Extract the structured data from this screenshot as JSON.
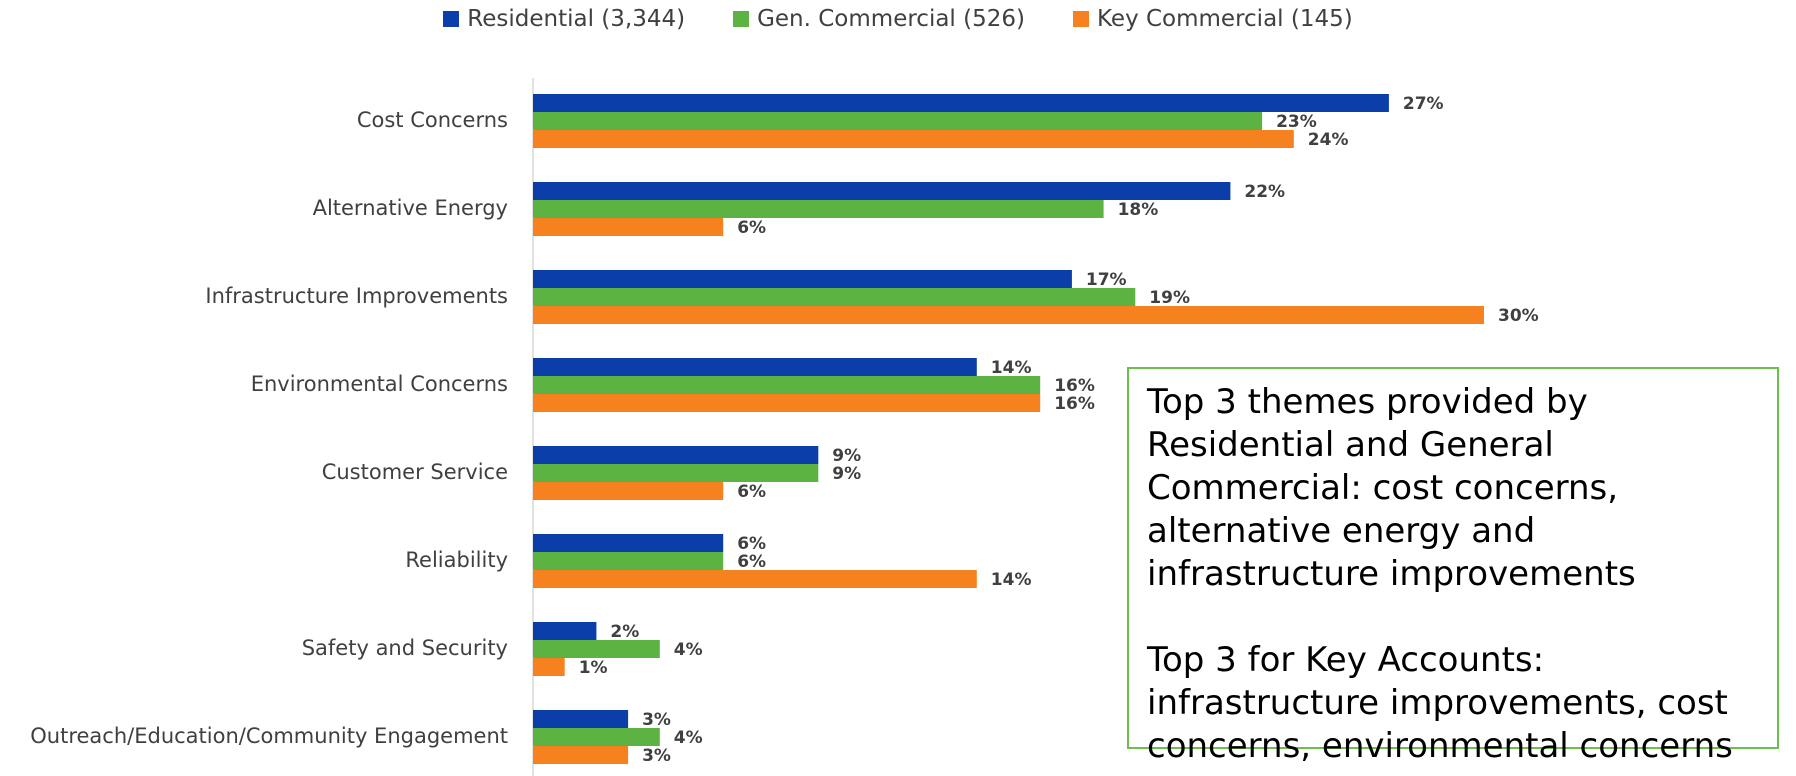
{
  "colors": {
    "residential": "#0b3ea8",
    "gen_commercial": "#5db342",
    "key_commercial": "#f5821f",
    "note_border": "#6cc04a"
  },
  "legend": [
    {
      "label": "Residential (3,344)",
      "color": "#0b3ea8"
    },
    {
      "label": "Gen. Commercial (526)",
      "color": "#5db342"
    },
    {
      "label": "Key Commercial (145)",
      "color": "#f5821f"
    }
  ],
  "chart_data": {
    "type": "bar",
    "orientation": "horizontal",
    "title": "",
    "xlabel": "",
    "ylabel": "",
    "grid": false,
    "legend_position": "top",
    "categories": [
      "Cost Concerns",
      "Alternative Energy",
      "Infrastructure Improvements",
      "Environmental Concerns",
      "Customer Service",
      "Reliability",
      "Safety and Security",
      "Outreach/Education/Community Engagement"
    ],
    "series": [
      {
        "name": "Residential (3,344)",
        "color": "#0b3ea8",
        "values": [
          27,
          22,
          17,
          14,
          9,
          6,
          2,
          3
        ],
        "labels": [
          "27%",
          "22%",
          "17%",
          "14%",
          "9%",
          "6%",
          "2%",
          "3%"
        ]
      },
      {
        "name": "Gen. Commercial (526)",
        "color": "#5db342",
        "values": [
          23,
          18,
          19,
          16,
          9,
          6,
          4,
          4
        ],
        "labels": [
          "23%",
          "18%",
          "19%",
          "16%",
          "9%",
          "6%",
          "4%",
          "4%"
        ]
      },
      {
        "name": "Key Commercial (145)",
        "color": "#f5821f",
        "values": [
          24,
          6,
          30,
          16,
          6,
          14,
          1,
          3
        ],
        "labels": [
          "24%",
          "6%",
          "30%",
          "16%",
          "6%",
          "14%",
          "1%",
          "3%"
        ]
      }
    ]
  },
  "note": {
    "paragraph1": "Top 3 themes provided by Residential and General Commercial: cost concerns, alternative energy and infrastructure improvements",
    "paragraph2": "Top 3 for Key Accounts: infrastructure improvements, cost concerns, environmental concerns"
  }
}
